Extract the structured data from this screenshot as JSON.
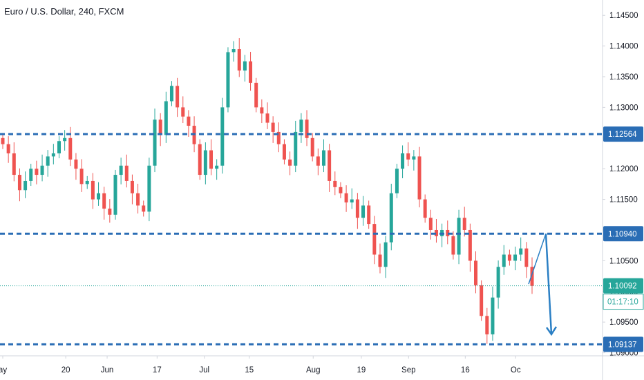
{
  "header": {
    "title": "Euro / U.S. Dollar, 240, FXCM"
  },
  "colors": {
    "up": "#26a69a",
    "down": "#ef5350",
    "level": "#2a6db5",
    "current": "#26a69a",
    "arrow": "#2a7fc4",
    "axis": "#d1d4dc"
  },
  "chart_data": {
    "type": "candlestick",
    "symbol": "EURUSD",
    "timeframe": "240",
    "source": "FXCM",
    "ylim": [
      1.0895,
      1.1475
    ],
    "y_ticks": [
      "1.14500",
      "1.14000",
      "1.13500",
      "1.13000",
      "1.12500",
      "1.12000",
      "1.11500",
      "1.11000",
      "1.10500",
      "1.10000",
      "1.09500",
      "1.09000"
    ],
    "x_ticks": [
      "ay",
      "20",
      "Jun",
      "17",
      "Jul",
      "15",
      "Aug",
      "19",
      "Sep",
      "16",
      "Oc"
    ],
    "levels": [
      {
        "price": 1.12564,
        "label": "1.12564"
      },
      {
        "price": 1.1094,
        "label": "1.10940"
      },
      {
        "price": 1.09137,
        "label": "1.09137"
      }
    ],
    "current_price": {
      "price": 1.10092,
      "label": "1.10092",
      "countdown": "01:17:10"
    },
    "closes": [
      1.124,
      1.1225,
      1.119,
      1.1165,
      1.118,
      1.12,
      1.119,
      1.1205,
      1.122,
      1.1225,
      1.1245,
      1.125,
      1.1215,
      1.12,
      1.1175,
      1.118,
      1.115,
      1.116,
      1.1135,
      1.1125,
      1.119,
      1.1205,
      1.118,
      1.116,
      1.114,
      1.113,
      1.1205,
      1.128,
      1.1255,
      1.131,
      1.1335,
      1.13,
      1.1285,
      1.127,
      1.124,
      1.119,
      1.123,
      1.12,
      1.1205,
      1.13,
      1.139,
      1.1395,
      1.136,
      1.1375,
      1.134,
      1.13,
      1.129,
      1.1275,
      1.126,
      1.124,
      1.1215,
      1.1205,
      1.126,
      1.128,
      1.125,
      1.122,
      1.1205,
      1.123,
      1.118,
      1.117,
      1.116,
      1.1145,
      1.115,
      1.112,
      1.114,
      1.111,
      1.106,
      1.104,
      1.108,
      1.116,
      1.12,
      1.1225,
      1.1215,
      1.122,
      1.115,
      1.112,
      1.11,
      1.109,
      1.11,
      1.109,
      1.106,
      1.112,
      1.11,
      1.105,
      1.101,
      1.096,
      1.093,
      1.099,
      1.104,
      1.106,
      1.105,
      1.106,
      1.107,
      1.104,
      1.1009
    ],
    "projection": [
      {
        "label": "start",
        "price": 1.1012
      },
      {
        "label": "peak",
        "price": 1.1094
      },
      {
        "label": "target",
        "price": 1.093
      }
    ]
  }
}
